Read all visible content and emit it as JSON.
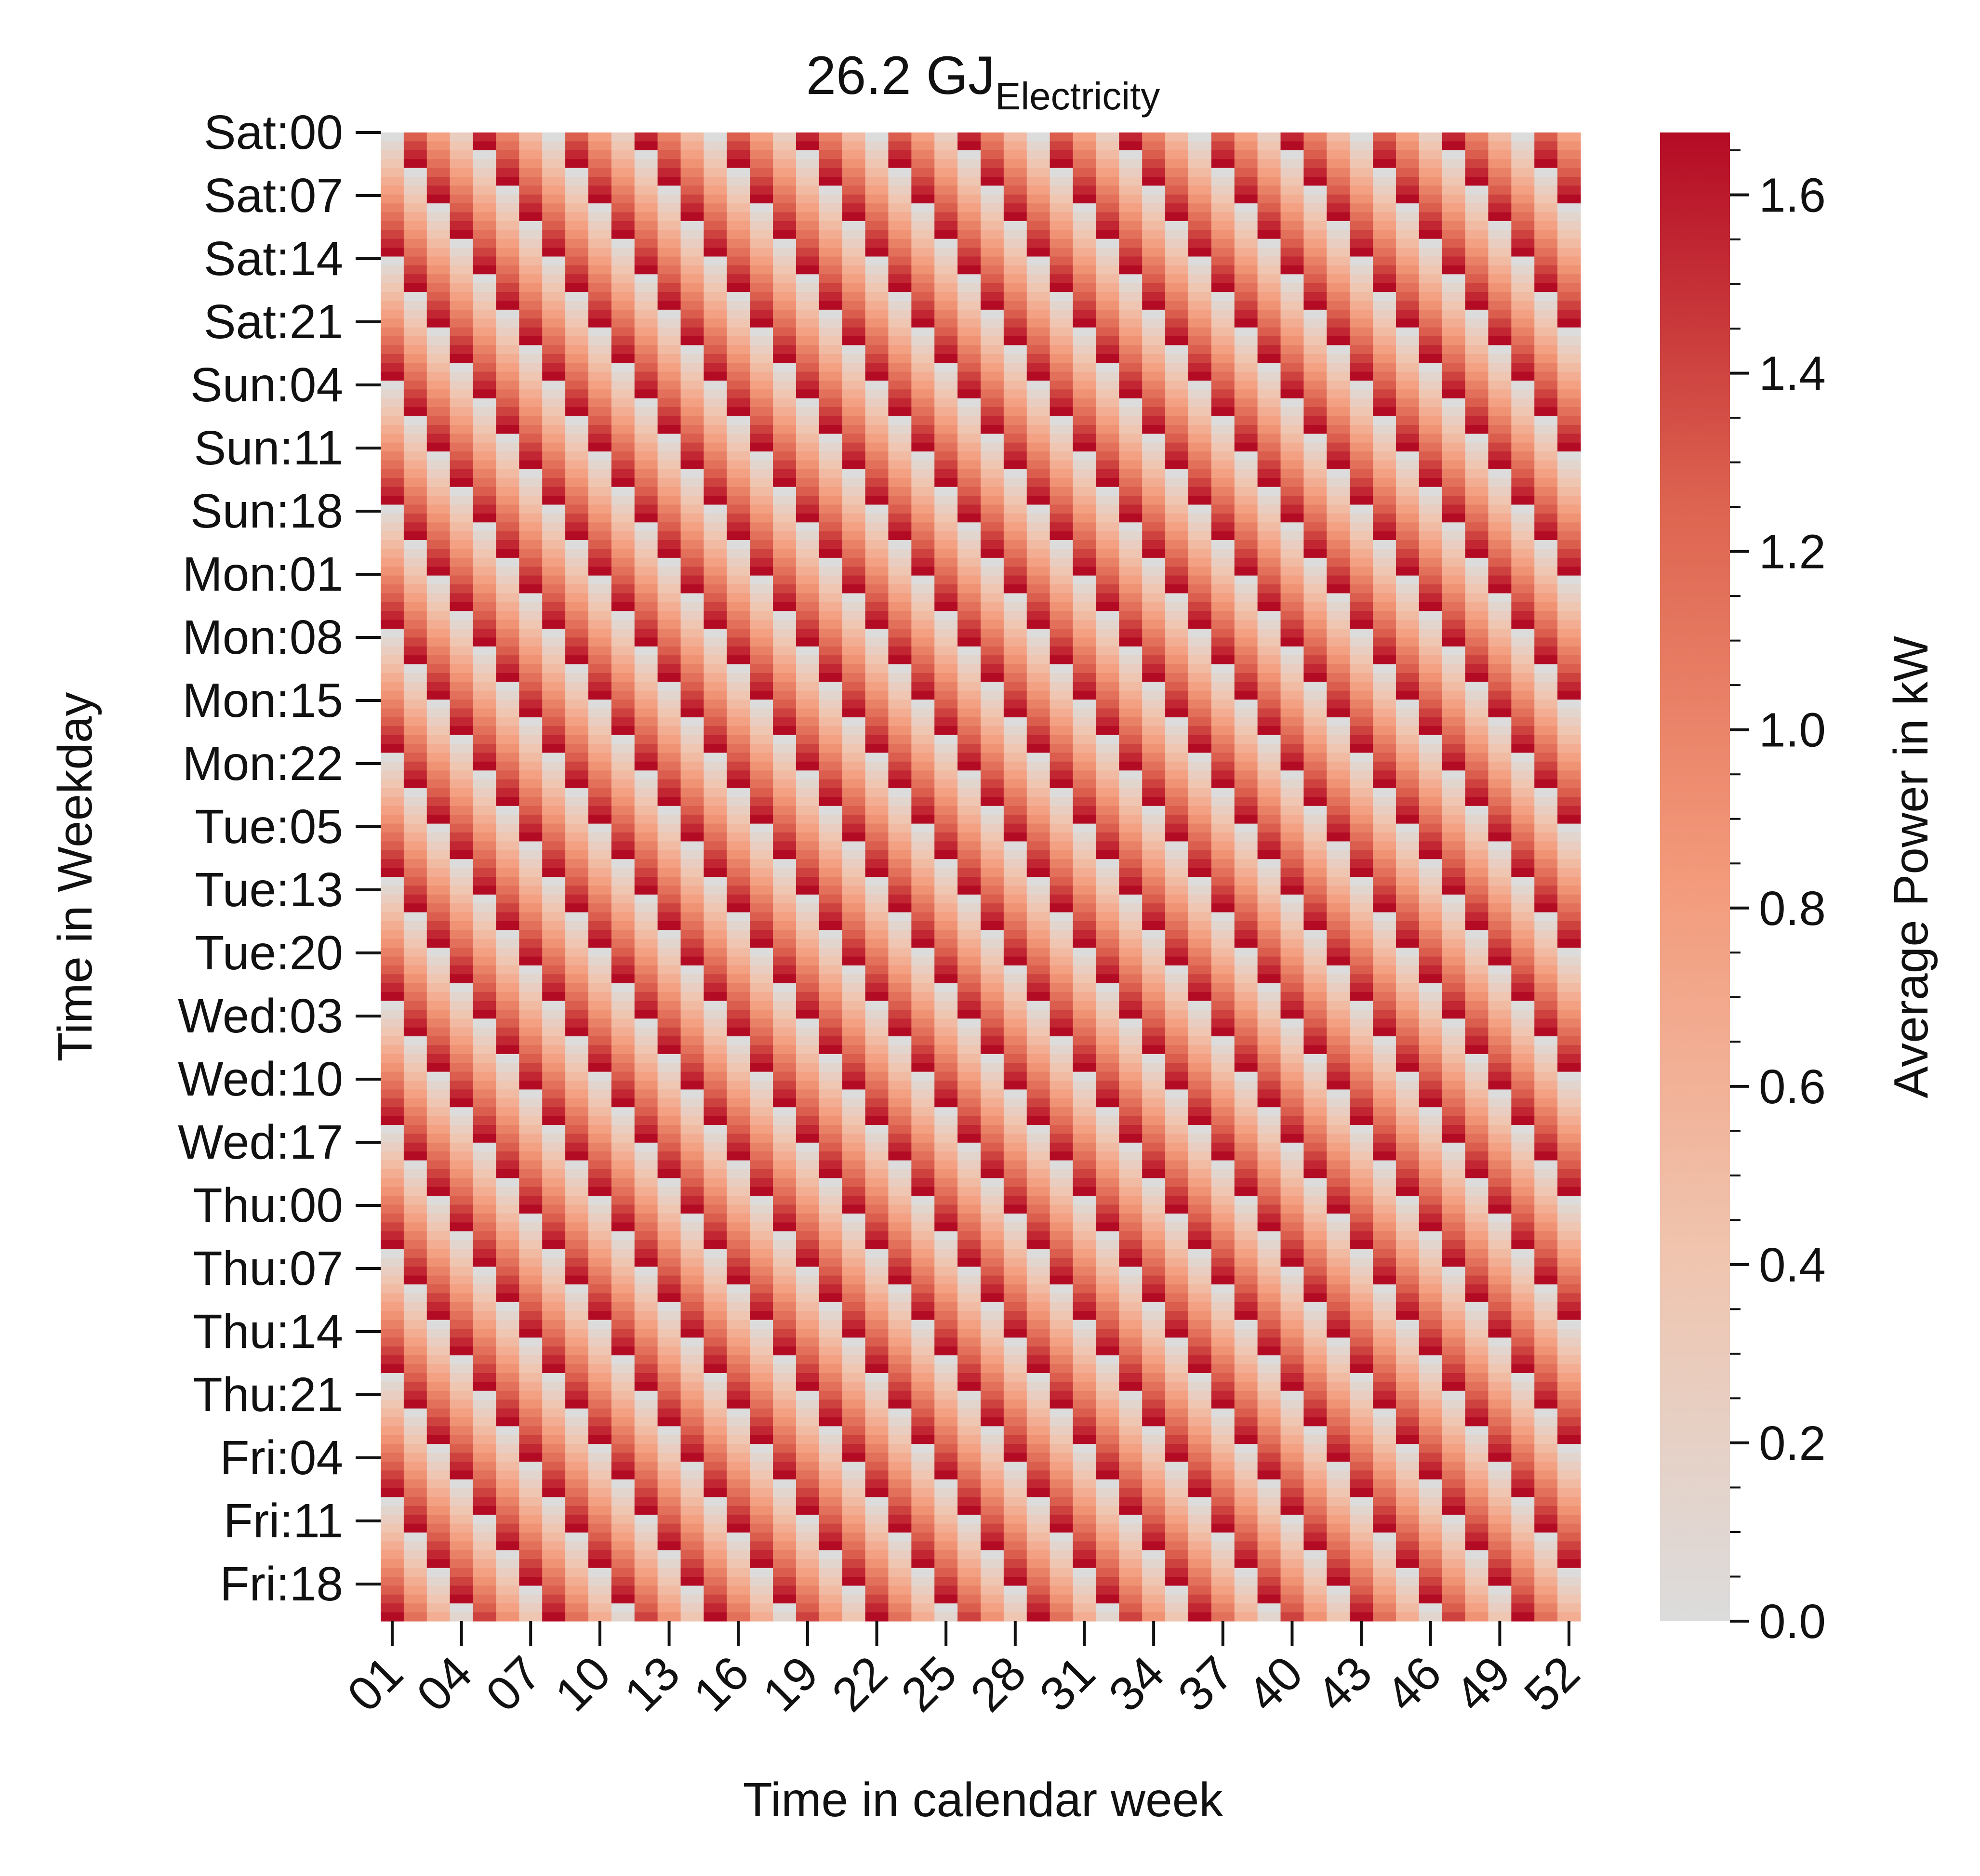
{
  "chart_data": {
    "type": "heatmap",
    "title_main": "26.2 GJ",
    "title_subscript": "Electricity",
    "xlabel": "Time in calendar week",
    "ylabel": "Time in Weekday",
    "x_tick_labels": [
      "01",
      "04",
      "07",
      "10",
      "13",
      "16",
      "19",
      "22",
      "25",
      "28",
      "31",
      "34",
      "37",
      "40",
      "43",
      "46",
      "49",
      "52"
    ],
    "x_tick_weeks": [
      1,
      4,
      7,
      10,
      13,
      16,
      19,
      22,
      25,
      28,
      31,
      34,
      37,
      40,
      43,
      46,
      49,
      52
    ],
    "x_range": [
      1,
      52
    ],
    "y_tick_labels": [
      "Sat:00",
      "Sat:07",
      "Sat:14",
      "Sat:21",
      "Sun:04",
      "Sun:11",
      "Sun:18",
      "Mon:01",
      "Mon:08",
      "Mon:15",
      "Mon:22",
      "Tue:05",
      "Tue:13",
      "Tue:20",
      "Wed:03",
      "Wed:10",
      "Wed:17",
      "Thu:00",
      "Thu:07",
      "Thu:14",
      "Thu:21",
      "Fri:04",
      "Fri:11",
      "Fri:18"
    ],
    "y_range": [
      "Sat:00",
      "Fri:23"
    ],
    "colorbar": {
      "label": "Average Power in kW",
      "ticks": [
        0.0,
        0.2,
        0.4,
        0.6,
        0.8,
        1.0,
        1.2,
        1.4,
        1.6
      ],
      "tick_labels": [
        "0.0",
        "0.2",
        "0.4",
        "0.6",
        "0.8",
        "1.0",
        "1.2",
        "1.4",
        "1.6"
      ],
      "range": [
        0.0,
        1.67
      ],
      "colors": [
        "#dcdcdc",
        "#f0c4ae",
        "#f39a7b",
        "#dd6450",
        "#b40b25"
      ]
    },
    "pattern": {
      "description_values": "periodic diagonal bands; each cycle ramps from 0.0 kW (gray) up to about 1.67 kW (dark red)",
      "value_min": 0.0,
      "value_max": 1.67,
      "cycle_hours": 14,
      "weekly_phase_shift_hours": 4
    }
  }
}
